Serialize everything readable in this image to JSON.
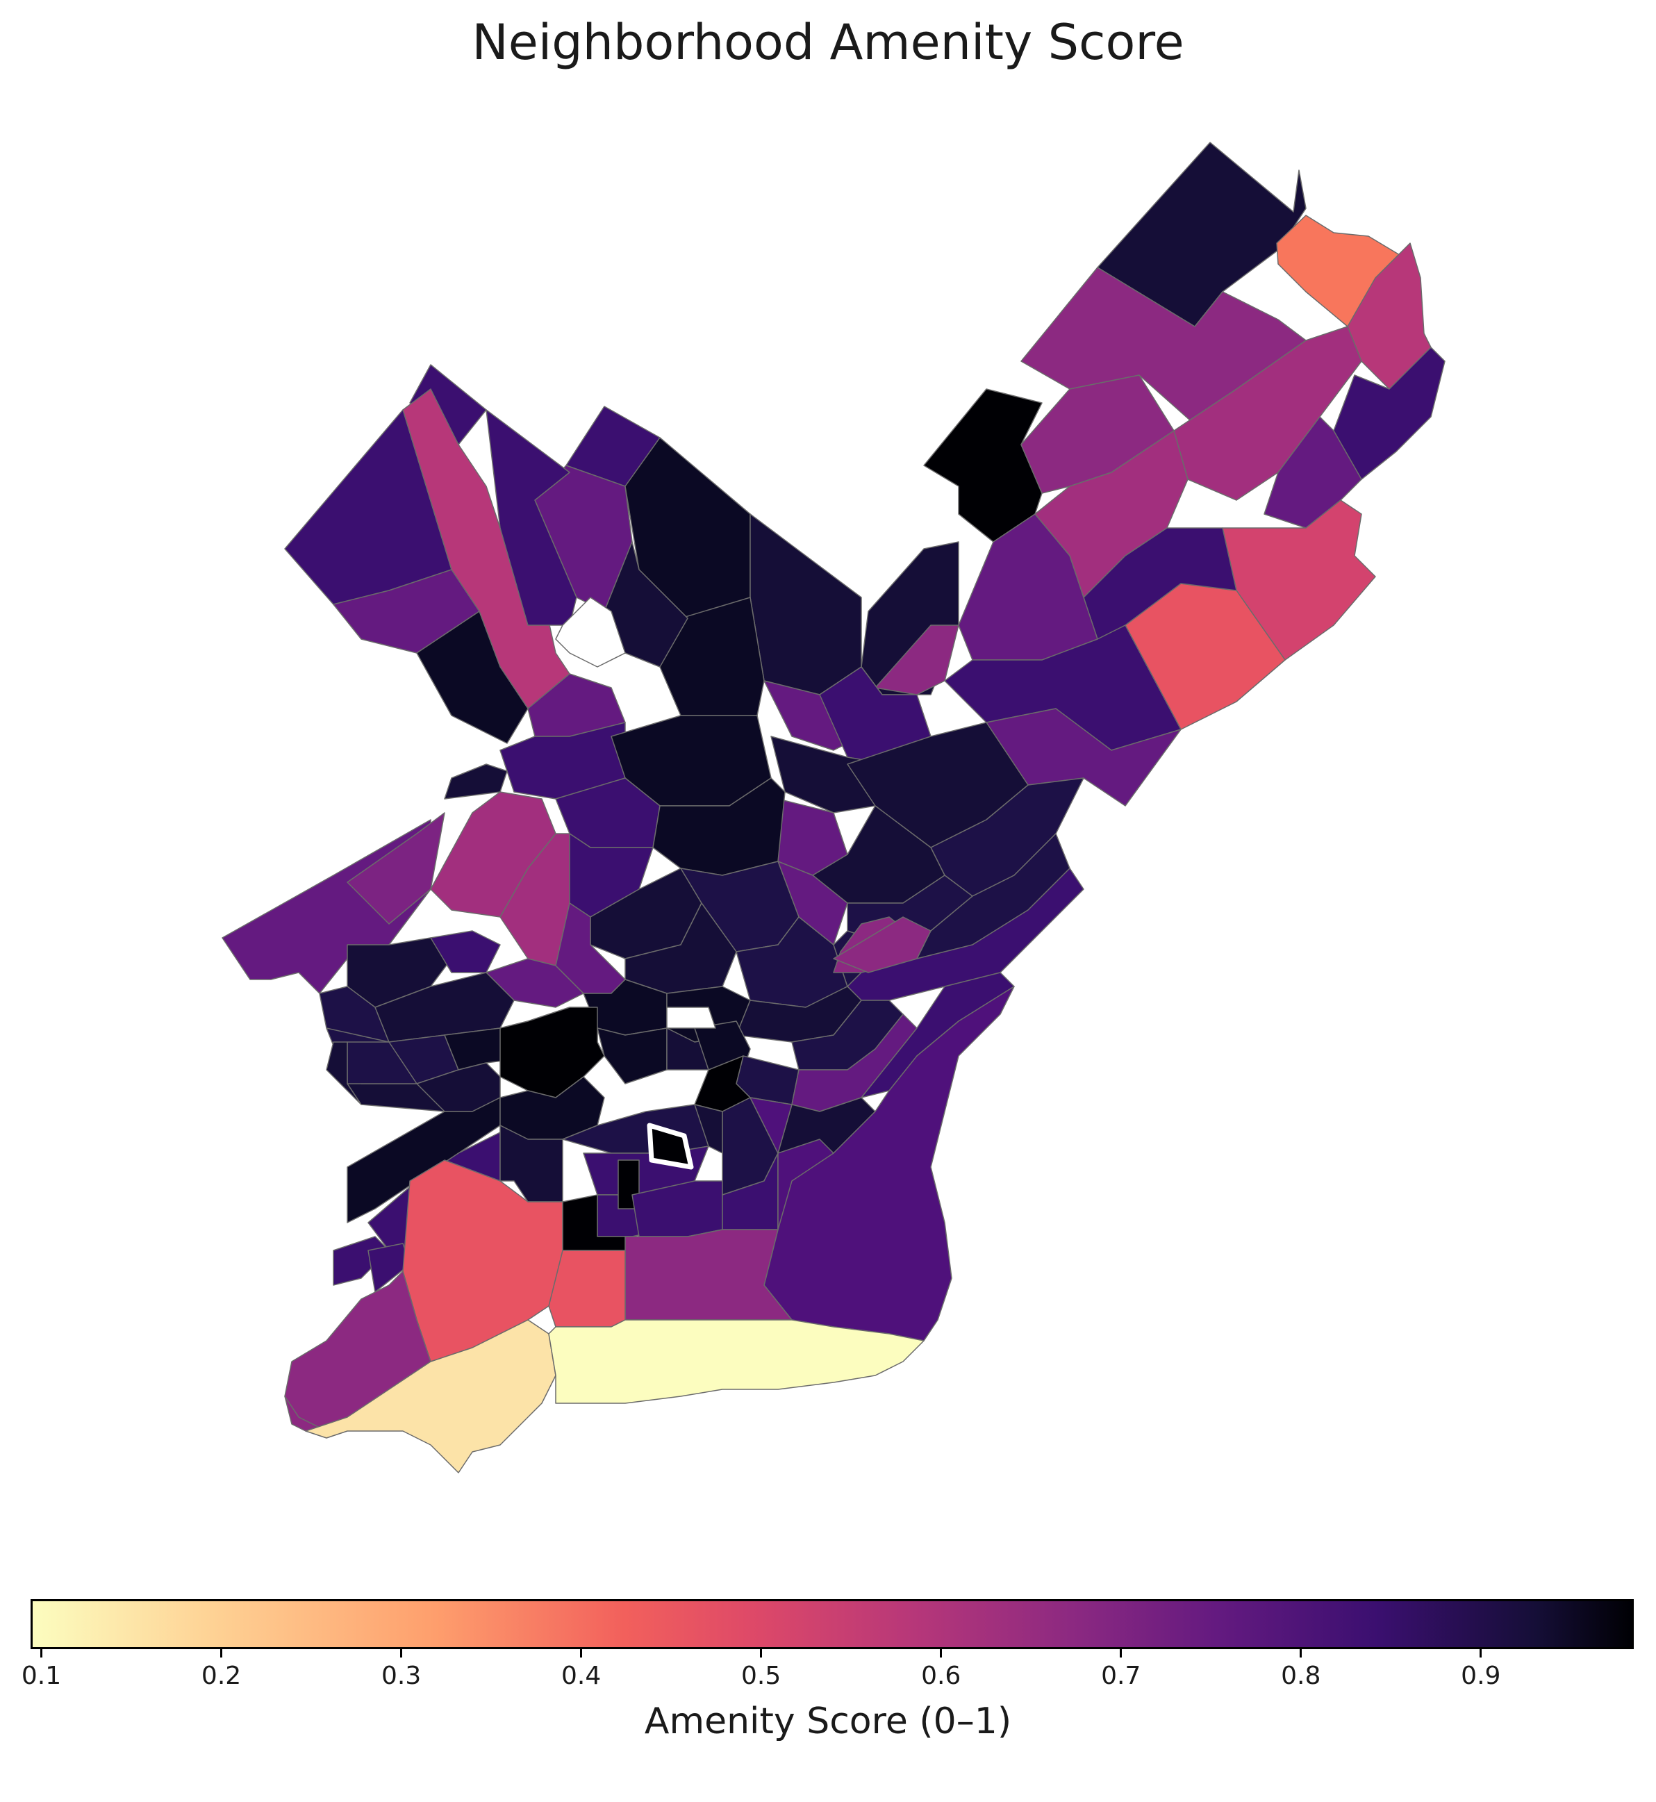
{
  "title": "Neighborhood Amenity Score",
  "colorbar": {
    "label": "Amenity Score (0–1)",
    "ticks": [
      "0.1",
      "0.2",
      "0.3",
      "0.4",
      "0.5",
      "0.6",
      "0.7",
      "0.8",
      "0.9"
    ],
    "range": [
      0.094,
      0.985
    ],
    "colormap": "magma_r"
  },
  "colors": {
    "very_high": "#000004",
    "high": "#150e37",
    "upper_mid": "#3b0f70",
    "mid": "#641a80",
    "lower_mid": "#8c2981",
    "pink": "#b73779",
    "red": "#e85362",
    "orange": "#f8765c",
    "light_orange": "#fcb375",
    "pale": "#fcfdbf",
    "boundary": "#6b6b6b"
  }
}
